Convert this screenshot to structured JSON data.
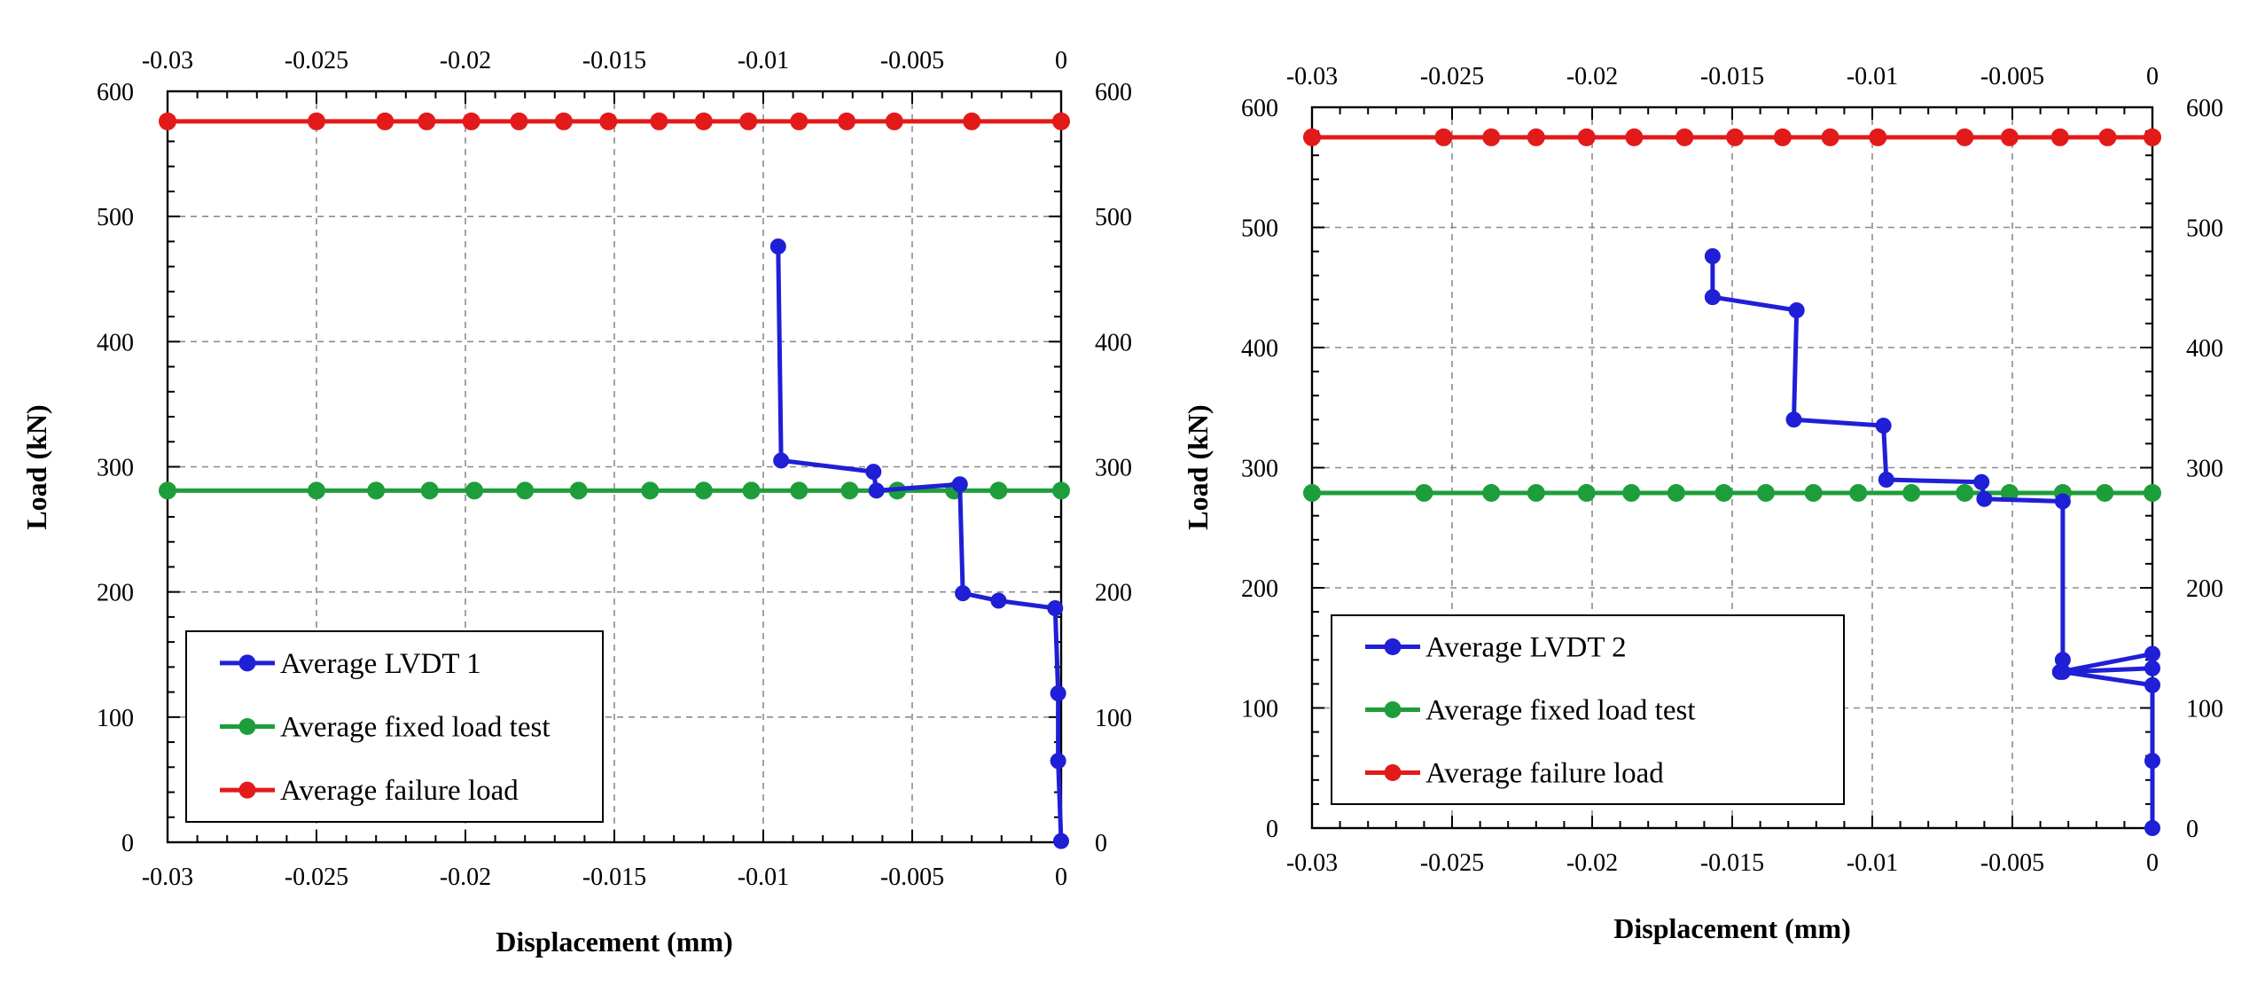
{
  "chart_data": [
    {
      "type": "line",
      "title": "",
      "xlabel": "Displacement (mm)",
      "ylabel": "Load (kN)",
      "xlim": [
        -0.03,
        0
      ],
      "ylim": [
        0,
        600
      ],
      "x_tick_labels": [
        "-0.03",
        "-0.025",
        "-0.02",
        "-0.015",
        "-0.01",
        "-0.005",
        "0"
      ],
      "y_tick_labels": [
        "0",
        "100",
        "200",
        "300",
        "400",
        "500",
        "600"
      ],
      "grid": true,
      "legend_position": "bottom-left",
      "series": [
        {
          "name": "Average LVDT 1",
          "color": "#1f1fd6",
          "x": [
            -0.0095,
            -0.0094,
            -0.0063,
            -0.0062,
            -0.0034,
            -0.0033,
            -0.0021,
            -0.0002,
            -0.0001,
            -0.0001,
            0
          ],
          "y": [
            476,
            305,
            296,
            281,
            286,
            199,
            193,
            187,
            119,
            65,
            1
          ]
        },
        {
          "name": "Average fixed load test",
          "color": "#1e9e3a",
          "x": [
            -0.03,
            -0.025,
            -0.023,
            -0.0212,
            -0.0197,
            -0.018,
            -0.0162,
            -0.0138,
            -0.012,
            -0.0104,
            -0.0088,
            -0.0071,
            -0.0055,
            -0.0036,
            -0.0021,
            0
          ],
          "y": [
            281,
            281,
            281,
            281,
            281,
            281,
            281,
            281,
            281,
            281,
            281,
            281,
            281,
            281,
            281,
            281
          ]
        },
        {
          "name": "Average failure load",
          "color": "#e31a1a",
          "x": [
            -0.03,
            -0.025,
            -0.0227,
            -0.0213,
            -0.0198,
            -0.0182,
            -0.0167,
            -0.0152,
            -0.0135,
            -0.012,
            -0.0105,
            -0.0088,
            -0.0072,
            -0.0056,
            -0.003,
            0
          ],
          "y": [
            576,
            576,
            576,
            576,
            576,
            576,
            576,
            576,
            576,
            576,
            576,
            576,
            576,
            576,
            576,
            576
          ]
        }
      ]
    },
    {
      "type": "line",
      "title": "",
      "xlabel": "Displacement (mm)",
      "ylabel": "Load (kN)",
      "xlim": [
        -0.03,
        0
      ],
      "ylim": [
        0,
        600
      ],
      "x_tick_labels": [
        "-0.03",
        "-0.025",
        "-0.02",
        "-0.015",
        "-0.01",
        "-0.005",
        "0"
      ],
      "y_tick_labels": [
        "0",
        "100",
        "200",
        "300",
        "400",
        "500",
        "600"
      ],
      "grid": true,
      "legend_position": "bottom-left",
      "series": [
        {
          "name": "Average LVDT 2",
          "color": "#1f1fd6",
          "x": [
            -0.0157,
            -0.0157,
            -0.0127,
            -0.0128,
            -0.0096,
            -0.0095,
            -0.0061,
            -0.006,
            -0.0032,
            -0.0032,
            -0.0033,
            0,
            0,
            -0.0032,
            0,
            0,
            0
          ],
          "y": [
            476,
            442,
            431,
            340,
            335,
            290,
            288,
            274,
            272,
            140,
            130,
            145,
            133,
            130,
            119,
            56,
            0
          ]
        },
        {
          "name": "Average fixed load test",
          "color": "#1e9e3a",
          "x": [
            -0.03,
            -0.026,
            -0.0236,
            -0.022,
            -0.0202,
            -0.0186,
            -0.017,
            -0.0153,
            -0.0138,
            -0.0121,
            -0.0105,
            -0.0086,
            -0.0067,
            -0.0051,
            -0.0032,
            -0.0017,
            0
          ],
          "y": [
            279,
            279,
            279,
            279,
            279,
            279,
            279,
            279,
            279,
            279,
            279,
            279,
            279,
            279,
            279,
            279,
            279
          ]
        },
        {
          "name": "Average failure load",
          "color": "#e31a1a",
          "x": [
            -0.03,
            -0.0253,
            -0.0236,
            -0.022,
            -0.0202,
            -0.0185,
            -0.0167,
            -0.0149,
            -0.0132,
            -0.0115,
            -0.0098,
            -0.0067,
            -0.0051,
            -0.0033,
            -0.0016,
            0
          ],
          "y": [
            575,
            575,
            575,
            575,
            575,
            575,
            575,
            575,
            575,
            575,
            575,
            575,
            575,
            575,
            575,
            575
          ]
        }
      ]
    }
  ]
}
